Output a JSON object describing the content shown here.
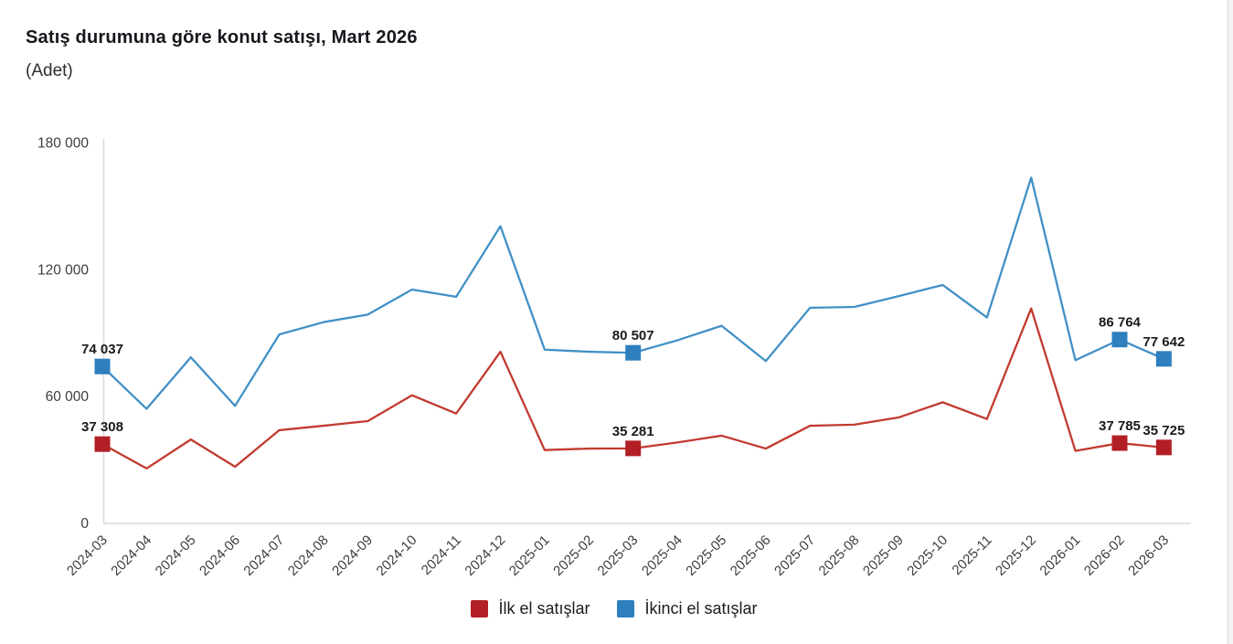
{
  "header": {
    "title": "Satış durumuna göre konut satışı, Mart 2026",
    "subtitle": "(Adet)"
  },
  "chart_data": {
    "type": "line",
    "title": "Satış durumuna göre konut satışı, Mart 2026",
    "unit_label": "(Adet)",
    "categories": [
      "2024-03",
      "2024-04",
      "2024-05",
      "2024-06",
      "2024-07",
      "2024-08",
      "2024-09",
      "2024-10",
      "2024-11",
      "2024-12",
      "2025-01",
      "2025-02",
      "2025-03",
      "2025-04",
      "2025-05",
      "2025-06",
      "2025-07",
      "2025-08",
      "2025-09",
      "2025-10",
      "2025-11",
      "2025-12",
      "2026-01",
      "2026-02",
      "2026-03"
    ],
    "series": [
      {
        "name": "İlk el satışlar",
        "line_color": "#c23a2f",
        "marker_color": "#b22025",
        "values": [
          37308,
          25800,
          39500,
          26600,
          43900,
          46000,
          48200,
          60400,
          51800,
          81000,
          34500,
          35200,
          35281,
          38100,
          41300,
          35200,
          46000,
          46500,
          49900,
          57100,
          49200,
          101500,
          34100,
          37785,
          35725
        ],
        "labeled_points": {
          "0": "37 308",
          "12": "35 281",
          "23": "37 785",
          "24": "35 725"
        }
      },
      {
        "name": "İkinci el satışlar",
        "line_color": "#4190c6",
        "marker_color": "#2e7fbd",
        "values": [
          74037,
          54000,
          78400,
          55400,
          89200,
          95000,
          98600,
          110400,
          107000,
          140400,
          82000,
          81000,
          80507,
          86400,
          93300,
          76600,
          101800,
          102200,
          107300,
          112600,
          97200,
          163400,
          77000,
          86764,
          77642
        ],
        "labeled_points": {
          "0": "74 037",
          "12": "80 507",
          "23": "86 764",
          "24": "77 642"
        }
      }
    ],
    "ylim": [
      0,
      180000
    ],
    "yticks": [
      {
        "value": 0,
        "label": "0"
      },
      {
        "value": 60000,
        "label": "60 000"
      },
      {
        "value": 120000,
        "label": "120 000"
      },
      {
        "value": 180000,
        "label": "180 000"
      }
    ],
    "grid": false,
    "legend_position": "bottom",
    "axis_color": "#d9d9d9",
    "tick_text_color": "#3d3d3d",
    "data_label_color": "#1a1a1a"
  },
  "legend": {
    "items": [
      {
        "label": "İlk el satışlar",
        "color": "#b22025"
      },
      {
        "label": "İkinci el satışlar",
        "color": "#2e7fbd"
      }
    ]
  }
}
